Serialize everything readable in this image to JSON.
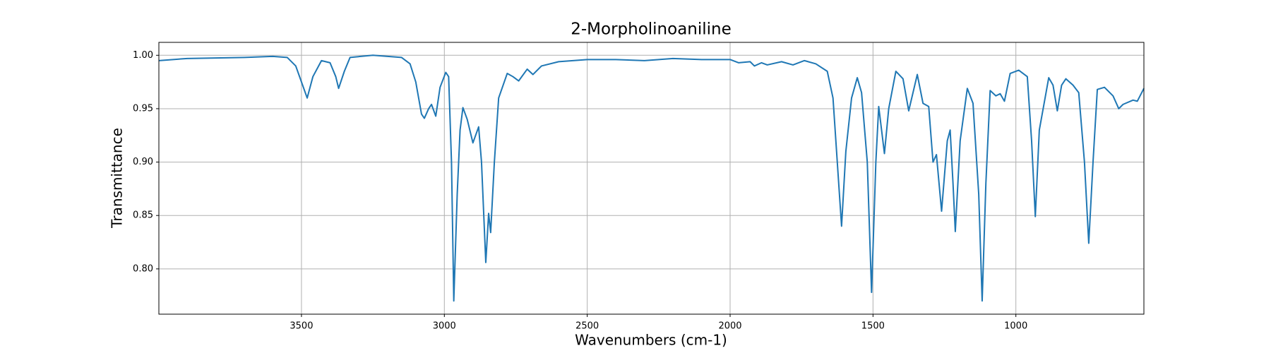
{
  "chart_data": {
    "type": "line",
    "title": "2-Morpholinoaniline",
    "x_label": "Wavenumbers (cm-1)",
    "y_label": "Transmittance",
    "x": [
      3999,
      3900,
      3700,
      3600,
      3550,
      3520,
      3500,
      3480,
      3460,
      3430,
      3400,
      3380,
      3370,
      3350,
      3330,
      3250,
      3150,
      3120,
      3100,
      3080,
      3070,
      3055,
      3045,
      3030,
      3015,
      2995,
      2985,
      2975,
      2967,
      2955,
      2945,
      2935,
      2920,
      2900,
      2880,
      2870,
      2855,
      2845,
      2838,
      2825,
      2810,
      2780,
      2760,
      2740,
      2710,
      2690,
      2660,
      2600,
      2500,
      2400,
      2300,
      2200,
      2100,
      2000,
      1970,
      1930,
      1915,
      1890,
      1870,
      1820,
      1780,
      1740,
      1700,
      1660,
      1640,
      1625,
      1610,
      1595,
      1575,
      1555,
      1540,
      1520,
      1505,
      1490,
      1480,
      1470,
      1460,
      1445,
      1420,
      1395,
      1375,
      1345,
      1325,
      1305,
      1290,
      1278,
      1260,
      1240,
      1230,
      1220,
      1212,
      1195,
      1170,
      1150,
      1130,
      1118,
      1105,
      1090,
      1070,
      1055,
      1040,
      1020,
      990,
      960,
      945,
      932,
      918,
      885,
      870,
      855,
      840,
      825,
      800,
      780,
      760,
      745,
      730,
      715,
      690,
      660,
      640,
      625,
      590,
      575,
      552
    ],
    "values": [
      0.995,
      0.997,
      0.998,
      0.999,
      0.998,
      0.99,
      0.975,
      0.96,
      0.98,
      0.995,
      0.993,
      0.98,
      0.969,
      0.985,
      0.998,
      1.0,
      0.998,
      0.992,
      0.975,
      0.945,
      0.941,
      0.95,
      0.954,
      0.943,
      0.97,
      0.984,
      0.98,
      0.9,
      0.77,
      0.87,
      0.93,
      0.951,
      0.94,
      0.918,
      0.933,
      0.9,
      0.806,
      0.852,
      0.834,
      0.9,
      0.96,
      0.983,
      0.98,
      0.976,
      0.987,
      0.982,
      0.99,
      0.994,
      0.996,
      0.996,
      0.995,
      0.997,
      0.996,
      0.996,
      0.993,
      0.994,
      0.99,
      0.993,
      0.991,
      0.994,
      0.991,
      0.995,
      0.992,
      0.985,
      0.96,
      0.9,
      0.84,
      0.91,
      0.96,
      0.979,
      0.965,
      0.9,
      0.778,
      0.9,
      0.952,
      0.93,
      0.908,
      0.95,
      0.985,
      0.978,
      0.948,
      0.982,
      0.955,
      0.952,
      0.9,
      0.907,
      0.854,
      0.92,
      0.93,
      0.88,
      0.835,
      0.92,
      0.969,
      0.955,
      0.87,
      0.77,
      0.88,
      0.967,
      0.962,
      0.964,
      0.957,
      0.983,
      0.986,
      0.98,
      0.92,
      0.849,
      0.93,
      0.979,
      0.972,
      0.948,
      0.972,
      0.978,
      0.972,
      0.965,
      0.9,
      0.824,
      0.9,
      0.968,
      0.97,
      0.962,
      0.95,
      0.954,
      0.958,
      0.957,
      0.969
    ],
    "color": "#1f77b4",
    "xlim": [
      3999,
      552
    ],
    "ylim": [
      0.7576,
      1.0121
    ],
    "xticks": [
      3500,
      3000,
      2500,
      2000,
      1500,
      1000
    ],
    "yticks": [
      {
        "value": 1,
        "label": "1.00"
      },
      0.95,
      {
        "value": 0.9,
        "label": "0.90"
      },
      0.85,
      {
        "value": 0.8,
        "label": "0.80"
      }
    ],
    "grid": true
  }
}
